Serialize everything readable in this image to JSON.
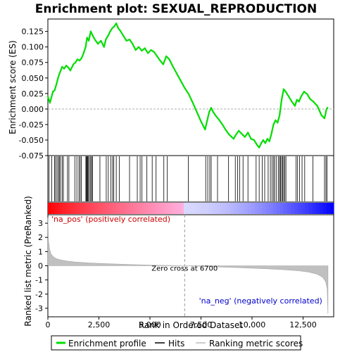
{
  "chart_data": {
    "type": "line",
    "title": "Enrichment plot: SEXUAL_REPRODUCTION",
    "top_panel": {
      "ylabel": "Enrichment score (ES)",
      "ylim": [
        -0.075,
        0.145
      ],
      "yticks": [
        -0.075,
        -0.05,
        -0.025,
        0.0,
        0.025,
        0.05,
        0.075,
        0.1,
        0.125
      ],
      "ytick_labels": [
        "-0.075",
        "-0.050",
        "-0.025",
        "0.000",
        "0.025",
        "0.050",
        "0.075",
        "0.100",
        "0.125"
      ],
      "series": [
        {
          "name": "Enrichment profile",
          "color": "#00dd00",
          "x": [
            0,
            100,
            250,
            330,
            420,
            500,
            580,
            700,
            800,
            900,
            1000,
            1100,
            1250,
            1350,
            1450,
            1550,
            1650,
            1750,
            1850,
            1920,
            2000,
            2100,
            2200,
            2300,
            2450,
            2600,
            2750,
            2850,
            2950,
            3050,
            3150,
            3250,
            3350,
            3450,
            3550,
            3700,
            3850,
            4000,
            4150,
            4300,
            4450,
            4600,
            4750,
            4900,
            5050,
            5200,
            5350,
            5500,
            5650,
            5800,
            5950,
            6100,
            6300,
            6500,
            6700,
            6900,
            7100,
            7300,
            7500,
            7700,
            7900,
            8000,
            8100,
            8250,
            8400,
            8550,
            8700,
            8850,
            9000,
            9100,
            9200,
            9350,
            9500,
            9650,
            9800,
            9950,
            10100,
            10250,
            10350,
            10450,
            10550,
            10650,
            10750,
            10850,
            10950,
            11050,
            11150,
            11250,
            11350,
            11450,
            11550,
            11650,
            11800,
            11950,
            12100,
            12200,
            12300,
            12400,
            12550,
            12700,
            12850,
            13000,
            13200,
            13400,
            13550,
            13650,
            13700
          ],
          "y": [
            0.02,
            0.01,
            0.028,
            0.03,
            0.04,
            0.05,
            0.058,
            0.068,
            0.065,
            0.07,
            0.067,
            0.062,
            0.072,
            0.075,
            0.08,
            0.078,
            0.082,
            0.09,
            0.1,
            0.115,
            0.11,
            0.125,
            0.118,
            0.112,
            0.105,
            0.11,
            0.1,
            0.113,
            0.118,
            0.125,
            0.13,
            0.133,
            0.138,
            0.13,
            0.126,
            0.118,
            0.11,
            0.112,
            0.105,
            0.095,
            0.1,
            0.094,
            0.098,
            0.09,
            0.095,
            0.092,
            0.085,
            0.078,
            0.072,
            0.085,
            0.08,
            0.07,
            0.058,
            0.046,
            0.034,
            0.024,
            0.01,
            -0.005,
            -0.02,
            -0.033,
            -0.005,
            0.002,
            -0.005,
            -0.012,
            -0.018,
            -0.025,
            -0.033,
            -0.04,
            -0.045,
            -0.048,
            -0.042,
            -0.035,
            -0.04,
            -0.045,
            -0.038,
            -0.048,
            -0.05,
            -0.058,
            -0.062,
            -0.055,
            -0.05,
            -0.055,
            -0.048,
            -0.052,
            -0.04,
            -0.025,
            -0.018,
            -0.022,
            -0.01,
            0.015,
            0.032,
            0.028,
            0.02,
            0.012,
            0.005,
            0.015,
            0.012,
            0.02,
            0.028,
            0.024,
            0.016,
            0.012,
            0.005,
            -0.01,
            -0.015,
            0.0,
            0.002
          ]
        }
      ]
    },
    "hits": [
      60,
      190,
      330,
      380,
      450,
      520,
      560,
      620,
      700,
      760,
      960,
      1030,
      1320,
      1420,
      1520,
      1580,
      1640,
      1860,
      1890,
      1920,
      1950,
      1980,
      2040,
      2100,
      2140,
      2190,
      2550,
      2860,
      2960,
      3080,
      3170,
      3230,
      3350,
      3500,
      4000,
      4380,
      4520,
      4610,
      4850,
      5110,
      5300,
      5680,
      5850,
      6880,
      7730,
      7830,
      7930,
      8000,
      8310,
      8850,
      9180,
      9290,
      9390,
      9560,
      9800,
      10200,
      10350,
      10500,
      10620,
      10790,
      10900,
      10980,
      11060,
      11110,
      11200,
      11300,
      11350,
      11400,
      11450,
      11500,
      11550,
      11600,
      11660,
      12160,
      12230,
      12330,
      12450,
      12580,
      12980,
      13550,
      13620,
      13670
    ],
    "ranked_panel": {
      "ylabel": "Ranked list metric (PreRanked)",
      "xlabel": "Rank in Ordered Dataset",
      "xlim": [
        0,
        14000
      ],
      "xticks": [
        0,
        2500,
        5000,
        7500,
        10000,
        12500
      ],
      "xtick_labels": [
        "0",
        "2,500",
        "5,000",
        "7,500",
        "10,000",
        "12,500"
      ],
      "ylim": [
        -3.6,
        3.6
      ],
      "yticks": [
        -3,
        -2,
        -1,
        0,
        1,
        2,
        3
      ],
      "ytick_labels": [
        "-3",
        "-2",
        "-1",
        "0",
        "1",
        "2",
        "3"
      ],
      "metric_x": [
        0,
        30,
        80,
        150,
        250,
        400,
        600,
        900,
        1300,
        2000,
        3000,
        4000,
        5000,
        6000,
        6700,
        7500,
        8500,
        9500,
        10500,
        11500,
        12300,
        12800,
        13200,
        13450,
        13600,
        13680,
        13720
      ],
      "metric_y": [
        3.4,
        1.8,
        1.2,
        0.85,
        0.65,
        0.5,
        0.42,
        0.34,
        0.27,
        0.2,
        0.14,
        0.09,
        0.05,
        0.02,
        0.0,
        -0.04,
        -0.09,
        -0.14,
        -0.2,
        -0.27,
        -0.36,
        -0.45,
        -0.6,
        -0.8,
        -1.1,
        -1.6,
        -3.4
      ],
      "zero_cross": 6700,
      "zero_cross_label": "Zero cross at 6700",
      "pos_label": "'na_pos' (positively correlated)",
      "neg_label": "'na_neg' (negatively correlated)"
    },
    "legend": {
      "entries": [
        {
          "label": "Enrichment profile",
          "color": "#00dd00"
        },
        {
          "label": "Hits",
          "color": "#000000"
        },
        {
          "label": "Ranking metric scores",
          "color": "#bbbbbb"
        }
      ],
      "placement": "bottom"
    },
    "colors": {
      "es_line": "#00dd00",
      "metric_fill": "#c0c0c0",
      "pos_text": "#cc0000",
      "neg_text": "#0000cc",
      "zero_cross_line": "#999999",
      "bar_red": "#ff0000",
      "bar_pink": "#ffb0e0",
      "bar_lavender": "#d8d8ff",
      "bar_blue": "#0000ff"
    }
  }
}
